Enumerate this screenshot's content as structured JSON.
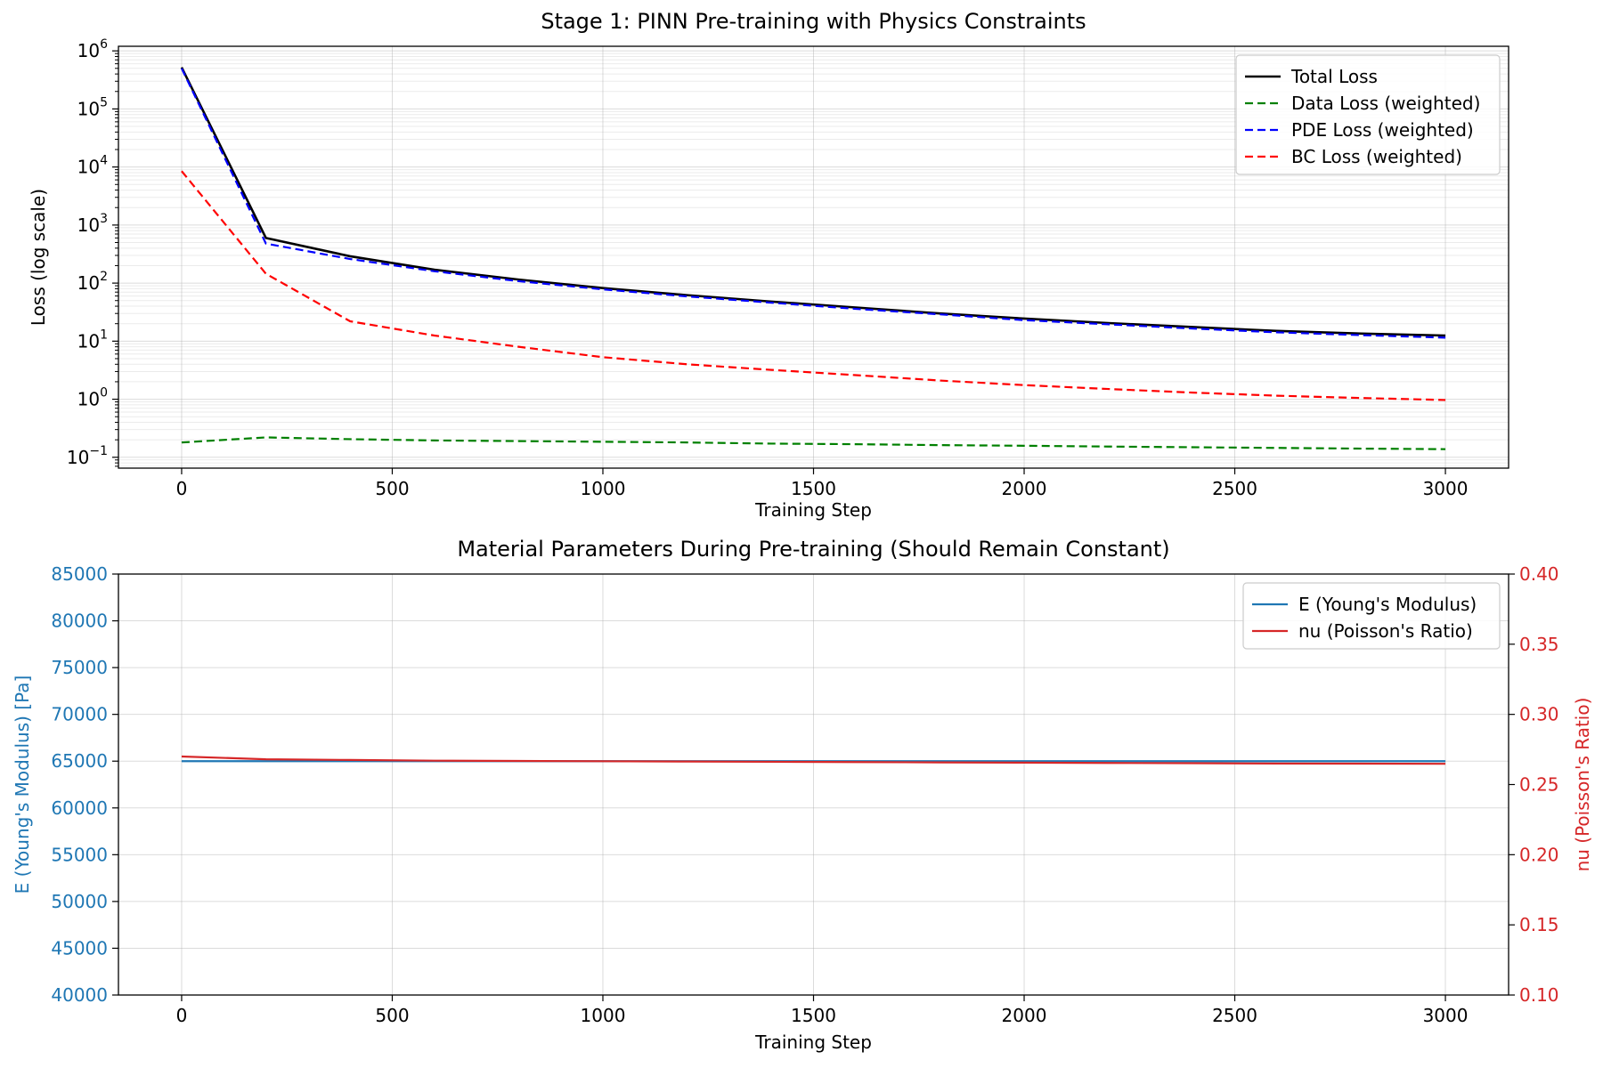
{
  "chart_data": [
    {
      "type": "line",
      "title": "Stage 1: PINN Pre-training with Physics Constraints",
      "xlabel": "Training Step",
      "ylabel": "Loss (log scale)",
      "yscale": "log",
      "xlim": [
        -150,
        3150
      ],
      "ylim": [
        0.065,
        1200000
      ],
      "xticks": [
        0,
        500,
        1000,
        1500,
        2000,
        2500,
        3000
      ],
      "xtick_labels": [
        "0",
        "500",
        "1000",
        "1500",
        "2000",
        "2500",
        "3000"
      ],
      "yticks": [
        {
          "value": 0.1,
          "base": "10",
          "exp": "−1"
        },
        {
          "value": 1,
          "base": "10",
          "exp": "0"
        },
        {
          "value": 10,
          "base": "10",
          "exp": "1"
        },
        {
          "value": 100,
          "base": "10",
          "exp": "2"
        },
        {
          "value": 1000,
          "base": "10",
          "exp": "3"
        },
        {
          "value": 10000,
          "base": "10",
          "exp": "4"
        },
        {
          "value": 100000,
          "base": "10",
          "exp": "5"
        },
        {
          "value": 1000000,
          "base": "10",
          "exp": "6"
        }
      ],
      "grid": true,
      "legend_position": "upper-right",
      "x": [
        0,
        200,
        400,
        600,
        800,
        1000,
        1200,
        1400,
        1600,
        1800,
        2000,
        2200,
        2400,
        2600,
        2800,
        3000
      ],
      "series": [
        {
          "name": "Total Loss",
          "color": "#000000",
          "dash": "solid",
          "width": 2.6,
          "values": [
            520000,
            600,
            290,
            170,
            115,
            82,
            62,
            48,
            38,
            30,
            24.5,
            20.5,
            17.5,
            15,
            13.5,
            12.5
          ]
        },
        {
          "name": "Data Loss (weighted)",
          "color": "#008000",
          "dash": "dashed",
          "width": 2.2,
          "values": [
            0.18,
            0.22,
            0.205,
            0.195,
            0.19,
            0.185,
            0.18,
            0.172,
            0.168,
            0.162,
            0.158,
            0.153,
            0.149,
            0.145,
            0.141,
            0.138
          ]
        },
        {
          "name": "PDE Loss (weighted)",
          "color": "#0000ff",
          "dash": "dashed",
          "width": 2.2,
          "values": [
            500000,
            480,
            260,
            160,
            108,
            78,
            59,
            46,
            36,
            29,
            23,
            19.5,
            16.5,
            14.2,
            12.7,
            11.5
          ]
        },
        {
          "name": "BC Loss (weighted)",
          "color": "#ff0000",
          "dash": "dashed",
          "width": 2.2,
          "values": [
            8500,
            145,
            22,
            12.5,
            8,
            5.3,
            4,
            3.2,
            2.6,
            2.1,
            1.75,
            1.5,
            1.3,
            1.15,
            1.05,
            0.97
          ]
        }
      ]
    },
    {
      "type": "line",
      "title": "Material Parameters During Pre-training (Should Remain Constant)",
      "xlabel": "Training Step",
      "ylabel": "E (Young's Modulus) [Pa]",
      "ylabel_right": "nu (Poisson's Ratio)",
      "xlim": [
        -150,
        3150
      ],
      "ylim": [
        40000,
        85000
      ],
      "ylim_right": [
        0.1,
        0.4
      ],
      "xticks": [
        0,
        500,
        1000,
        1500,
        2000,
        2500,
        3000
      ],
      "xtick_labels": [
        "0",
        "500",
        "1000",
        "1500",
        "2000",
        "2500",
        "3000"
      ],
      "yticks": [
        40000,
        45000,
        50000,
        55000,
        60000,
        65000,
        70000,
        75000,
        80000,
        85000
      ],
      "ytick_labels": [
        "40000",
        "45000",
        "50000",
        "55000",
        "60000",
        "65000",
        "70000",
        "75000",
        "80000",
        "85000"
      ],
      "yticks_right": [
        0.1,
        0.15,
        0.2,
        0.25,
        0.3,
        0.35,
        0.4
      ],
      "ytick_labels_right": [
        "0.10",
        "0.15",
        "0.20",
        "0.25",
        "0.30",
        "0.35",
        "0.40"
      ],
      "left_axis_color": "#1f77b4",
      "right_axis_color": "#d62728",
      "grid": true,
      "legend_position": "upper-right",
      "x": [
        0,
        200,
        400,
        600,
        800,
        1000,
        1200,
        1400,
        1600,
        1800,
        2000,
        2200,
        2400,
        2600,
        2800,
        3000
      ],
      "series": [
        {
          "name": "E (Young's Modulus)",
          "axis": "left",
          "color": "#1f77b4",
          "dash": "solid",
          "width": 2.2,
          "values": [
            65000,
            65000,
            65000,
            65000,
            65000,
            65000,
            65000,
            65000,
            65000,
            65000,
            65000,
            65000,
            65000,
            65000,
            65000,
            65000
          ]
        },
        {
          "name": "nu (Poisson's Ratio)",
          "axis": "right",
          "color": "#d62728",
          "dash": "solid",
          "width": 2.2,
          "values": [
            0.27,
            0.268,
            0.2675,
            0.267,
            0.2668,
            0.2666,
            0.2664,
            0.2662,
            0.266,
            0.2658,
            0.2656,
            0.2654,
            0.2652,
            0.265,
            0.2649,
            0.2648
          ]
        }
      ]
    }
  ]
}
